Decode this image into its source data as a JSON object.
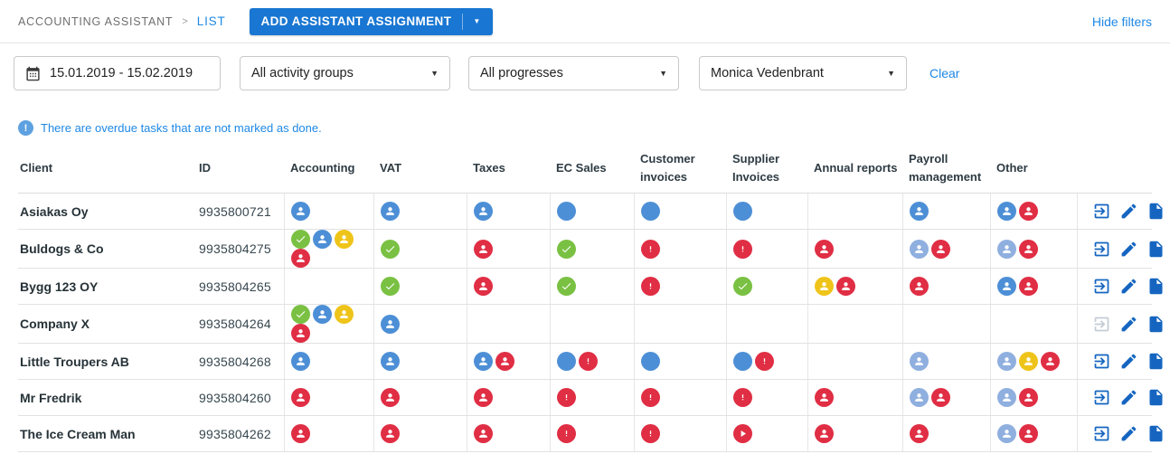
{
  "colors": {
    "accent_blue": "#1976D2",
    "link_blue": "#1E88E5",
    "action_blue": "#1565C0",
    "action_disabled": "#C4CCD5",
    "info_blue": "#5EA1E0",
    "palette": {
      "blue": "#4D8FD6",
      "lightblue": "#8FAFDF",
      "yellow": "#EFC41A",
      "red": "#E02E44",
      "green": "#7AC143"
    }
  },
  "breadcrumb": {
    "root": "ACCOUNTING ASSISTANT",
    "separator": ">",
    "current": "LIST"
  },
  "toolbar": {
    "add_button_label": "ADD ASSISTANT ASSIGNMENT",
    "hide_filters_label": "Hide filters"
  },
  "filters": {
    "date_range_value": "15.01.2019 - 15.02.2019",
    "activity_group_value": "All activity groups",
    "progress_value": "All progresses",
    "assistant_value": "Monica Vedenbrant",
    "clear_label": "Clear"
  },
  "notice": {
    "text": "There are overdue tasks that are not marked as done."
  },
  "table": {
    "columns": [
      "Client",
      "ID",
      "Accounting",
      "VAT",
      "Taxes",
      "EC Sales",
      "Customer invoices",
      "Supplier Invoices",
      "Annual reports",
      "Payroll management",
      "Other",
      ""
    ],
    "status_columns": [
      "accounting",
      "vat",
      "taxes",
      "ec-sales",
      "customer-invoices",
      "supplier-invoices",
      "annual-reports",
      "payroll-management",
      "other"
    ],
    "rows": [
      {
        "client": "Asiakas Oy",
        "id": "9935800721",
        "open_enabled": true,
        "cells": [
          [
            "assistant:blue"
          ],
          [
            "assistant:blue"
          ],
          [
            "assistant:blue"
          ],
          [
            "scheduled:blue"
          ],
          [
            "scheduled:blue"
          ],
          [
            "scheduled:blue"
          ],
          [],
          [
            "assistant:blue"
          ],
          [
            "assistant:blue",
            "assistant:red"
          ]
        ]
      },
      {
        "client": "Buldogs & Co",
        "id": "9935804275",
        "open_enabled": true,
        "cells": [
          [
            "done:green",
            "assistant:blue",
            "assistant:yellow",
            "assistant:red"
          ],
          [
            "done:green"
          ],
          [
            "assistant:red"
          ],
          [
            "done:green"
          ],
          [
            "overdue:red"
          ],
          [
            "overdue:red"
          ],
          [
            "assistant:red"
          ],
          [
            "assistant:lightblue",
            "assistant:red"
          ],
          [
            "assistant:lightblue",
            "assistant:red"
          ]
        ]
      },
      {
        "client": "Bygg 123 OY",
        "id": "9935804265",
        "open_enabled": true,
        "cells": [
          [],
          [
            "done:green"
          ],
          [
            "assistant:red"
          ],
          [
            "done:green"
          ],
          [
            "overdue:red"
          ],
          [
            "done:green"
          ],
          [
            "assistant:yellow",
            "assistant:red"
          ],
          [
            "assistant:red"
          ],
          [
            "assistant:blue",
            "assistant:red"
          ]
        ]
      },
      {
        "client": "Company X",
        "id": "9935804264",
        "open_enabled": false,
        "cells": [
          [
            "done:green",
            "assistant:blue",
            "assistant:yellow",
            "assistant:red"
          ],
          [
            "assistant:blue"
          ],
          [],
          [],
          [],
          [],
          [],
          [],
          []
        ]
      },
      {
        "client": "Little Troupers AB",
        "id": "9935804268",
        "open_enabled": true,
        "cells": [
          [
            "assistant:blue"
          ],
          [
            "assistant:blue"
          ],
          [
            "assistant:blue",
            "assistant:red"
          ],
          [
            "scheduled:blue",
            "overdue:red"
          ],
          [
            "scheduled:blue"
          ],
          [
            "scheduled:blue",
            "overdue:red"
          ],
          [],
          [
            "assistant:lightblue"
          ],
          [
            "assistant:lightblue",
            "assistant:yellow",
            "assistant:red"
          ]
        ]
      },
      {
        "client": "Mr Fredrik",
        "id": "9935804260",
        "open_enabled": true,
        "cells": [
          [
            "assistant:red"
          ],
          [
            "assistant:red"
          ],
          [
            "assistant:red"
          ],
          [
            "overdue:red"
          ],
          [
            "overdue:red"
          ],
          [
            "overdue:red"
          ],
          [
            "assistant:red"
          ],
          [
            "assistant:lightblue",
            "assistant:red"
          ],
          [
            "assistant:lightblue",
            "assistant:red"
          ]
        ]
      },
      {
        "client": "The Ice Cream Man",
        "id": "9935804262",
        "open_enabled": true,
        "cells": [
          [
            "assistant:red"
          ],
          [
            "assistant:red"
          ],
          [
            "assistant:red"
          ],
          [
            "overdue:red"
          ],
          [
            "overdue:red"
          ],
          [
            "inprogress:red"
          ],
          [
            "assistant:red"
          ],
          [
            "assistant:red"
          ],
          [
            "assistant:lightblue",
            "assistant:red"
          ]
        ]
      }
    ]
  }
}
